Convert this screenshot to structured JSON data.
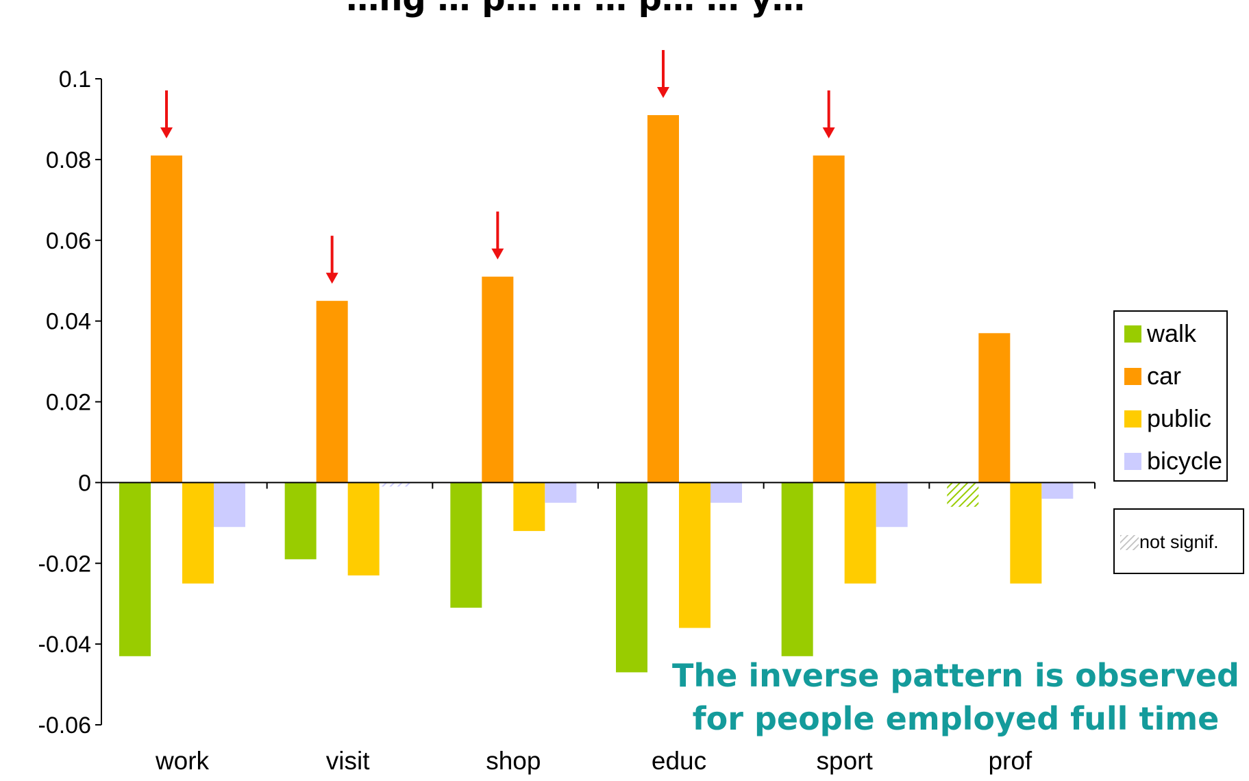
{
  "chart_data": {
    "type": "bar",
    "title": "…ng … p… … … p… … y…",
    "categories": [
      "work",
      "visit",
      "shop",
      "educ",
      "sport",
      "prof"
    ],
    "series": [
      {
        "name": "walk",
        "color": "#99cc00",
        "values": [
          -0.043,
          -0.019,
          -0.031,
          -0.047,
          -0.043,
          -0.006
        ],
        "not_signif": [
          false,
          false,
          false,
          false,
          false,
          true
        ]
      },
      {
        "name": "car",
        "color": "#ff9900",
        "values": [
          0.081,
          0.045,
          0.051,
          0.091,
          0.081,
          0.037
        ],
        "not_signif": [
          false,
          false,
          false,
          false,
          false,
          false
        ]
      },
      {
        "name": "public",
        "color": "#ffcc00",
        "values": [
          -0.025,
          -0.023,
          -0.012,
          -0.036,
          -0.025,
          -0.025
        ],
        "not_signif": [
          false,
          false,
          false,
          false,
          false,
          false
        ]
      },
      {
        "name": "bicycle",
        "color": "#ccccff",
        "values": [
          -0.011,
          -0.001,
          -0.005,
          -0.005,
          -0.011,
          -0.004
        ],
        "not_signif": [
          false,
          true,
          false,
          false,
          false,
          false
        ]
      }
    ],
    "ylim": [
      -0.06,
      0.1
    ],
    "yticks": [
      "0.1",
      "0.08",
      "0.06",
      "0.04",
      "0.02",
      "0",
      "-0.02",
      "-0.04",
      "-0.06"
    ],
    "ytick_values": [
      0.1,
      0.08,
      0.06,
      0.04,
      0.02,
      0,
      -0.02,
      -0.04,
      -0.06
    ],
    "arrows_over_car": [
      "work",
      "visit",
      "shop",
      "educ",
      "sport"
    ],
    "arrow_color": "#ee1111",
    "legend_position": "right",
    "legend_entries": [
      "walk",
      "car",
      "public",
      "bicycle"
    ],
    "legend_note": "not signif.",
    "annotation": [
      "The inverse pattern is observed",
      "for people employed full time"
    ],
    "annotation_color": "#149b9b"
  }
}
